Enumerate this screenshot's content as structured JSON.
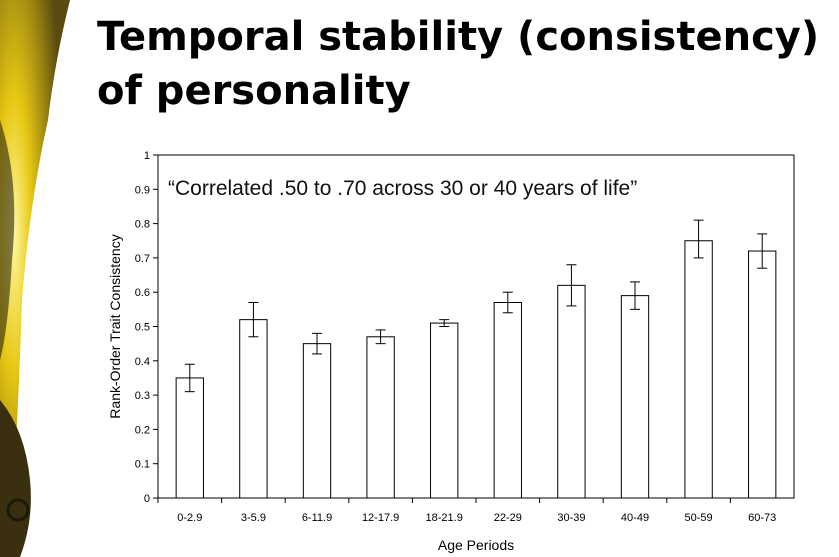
{
  "slide": {
    "title_line1": "Temporal stability (consistency)",
    "title_line2": "of personality"
  },
  "colors": {
    "background": "#ffffff",
    "bar_fill": "#ffffff",
    "bar_stroke": "#000000",
    "decor_dark": "#2a2510",
    "decor_yellow": "#e7c813"
  },
  "chart_data": {
    "type": "bar",
    "title": "",
    "annotation": "“Correlated .50 to .70 across 30 or 40 years of life”",
    "xlabel": "Age Periods",
    "ylabel": "Rank-Order Trait Consistency",
    "categories": [
      "0-2.9",
      "3-5.9",
      "6-11.9",
      "12-17.9",
      "18-21.9",
      "22-29",
      "30-39",
      "40-49",
      "50-59",
      "60-73"
    ],
    "values": [
      0.35,
      0.52,
      0.45,
      0.47,
      0.51,
      0.57,
      0.62,
      0.59,
      0.75,
      0.72
    ],
    "error_low": [
      0.31,
      0.47,
      0.42,
      0.45,
      0.5,
      0.54,
      0.56,
      0.55,
      0.7,
      0.67
    ],
    "error_high": [
      0.39,
      0.57,
      0.48,
      0.49,
      0.52,
      0.6,
      0.68,
      0.63,
      0.81,
      0.77
    ],
    "ylim": [
      0,
      1
    ],
    "yticks": [
      "0",
      "0.1",
      "0.2",
      "0.3",
      "0.4",
      "0.5",
      "0.6",
      "0.7",
      "0.8",
      "0.9",
      "1"
    ],
    "grid": false,
    "legend": "none"
  }
}
